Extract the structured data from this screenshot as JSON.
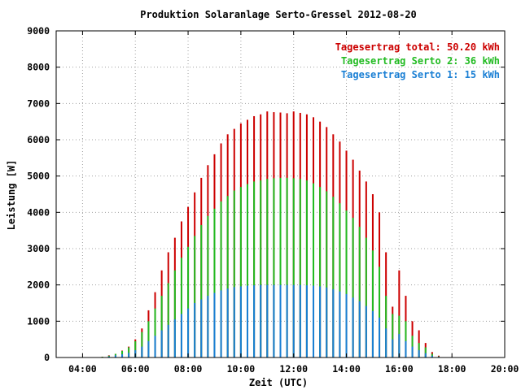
{
  "chart_data": {
    "type": "bar",
    "title": "Produktion Solaranlage Serto-Gressel 2012-08-20",
    "xlabel": "Zeit (UTC)",
    "ylabel": "Leistung [W]",
    "x_unit": "hours",
    "xlim": [
      3.0,
      20.0
    ],
    "ylim": [
      0,
      9000
    ],
    "x_ticks": [
      {
        "value": 4,
        "label": "04:00"
      },
      {
        "value": 6,
        "label": "06:00"
      },
      {
        "value": 8,
        "label": "08:00"
      },
      {
        "value": 10,
        "label": "10:00"
      },
      {
        "value": 12,
        "label": "12:00"
      },
      {
        "value": 14,
        "label": "14:00"
      },
      {
        "value": 16,
        "label": "16:00"
      },
      {
        "value": 18,
        "label": "18:00"
      },
      {
        "value": 20,
        "label": "20:00"
      }
    ],
    "y_ticks": [
      {
        "value": 0,
        "label": "0"
      },
      {
        "value": 1000,
        "label": "1000"
      },
      {
        "value": 2000,
        "label": "2000"
      },
      {
        "value": 3000,
        "label": "3000"
      },
      {
        "value": 4000,
        "label": "4000"
      },
      {
        "value": 5000,
        "label": "5000"
      },
      {
        "value": 6000,
        "label": "6000"
      },
      {
        "value": 7000,
        "label": "7000"
      },
      {
        "value": 8000,
        "label": "8000"
      },
      {
        "value": 9000,
        "label": "9000"
      }
    ],
    "grid": true,
    "legend_position": "top-right",
    "legend": [
      {
        "text": "Tagesertrag total: 50.20 kWh",
        "color": "#cc0000"
      },
      {
        "text": "Tagesertrag Serto 2: 36 kWh",
        "color": "#22bb22"
      },
      {
        "text": "Tagesertrag Serto 1: 15 kWh",
        "color": "#1a7fd4"
      }
    ],
    "series": [
      {
        "color": "#cc0000",
        "points": [
          [
            4.75,
            20
          ],
          [
            5.0,
            60
          ],
          [
            5.25,
            100
          ],
          [
            5.5,
            190
          ],
          [
            5.75,
            300
          ],
          [
            6.0,
            500
          ],
          [
            6.25,
            800
          ],
          [
            6.5,
            1300
          ],
          [
            6.75,
            1800
          ],
          [
            7.0,
            2400
          ],
          [
            7.25,
            2900
          ],
          [
            7.5,
            3300
          ],
          [
            7.75,
            3750
          ],
          [
            8.0,
            4150
          ],
          [
            8.25,
            4550
          ],
          [
            8.5,
            4950
          ],
          [
            8.75,
            5300
          ],
          [
            9.0,
            5600
          ],
          [
            9.25,
            5900
          ],
          [
            9.5,
            6150
          ],
          [
            9.75,
            6300
          ],
          [
            10.0,
            6450
          ],
          [
            10.25,
            6550
          ],
          [
            10.5,
            6650
          ],
          [
            10.75,
            6700
          ],
          [
            11.0,
            6780
          ],
          [
            11.25,
            6760
          ],
          [
            11.5,
            6750
          ],
          [
            11.75,
            6730
          ],
          [
            12.0,
            6780
          ],
          [
            12.25,
            6740
          ],
          [
            12.5,
            6700
          ],
          [
            12.75,
            6620
          ],
          [
            13.0,
            6500
          ],
          [
            13.25,
            6350
          ],
          [
            13.5,
            6150
          ],
          [
            13.75,
            5950
          ],
          [
            14.0,
            5700
          ],
          [
            14.25,
            5450
          ],
          [
            14.5,
            5150
          ],
          [
            14.75,
            4850
          ],
          [
            15.0,
            4500
          ],
          [
            15.25,
            4000
          ],
          [
            15.5,
            2900
          ],
          [
            15.75,
            1400
          ],
          [
            16.0,
            2400
          ],
          [
            16.25,
            1700
          ],
          [
            16.5,
            1000
          ],
          [
            16.75,
            750
          ],
          [
            17.0,
            400
          ],
          [
            17.25,
            150
          ],
          [
            17.5,
            50
          ]
        ]
      },
      {
        "color": "#22bb22",
        "points": [
          [
            4.75,
            20
          ],
          [
            5.0,
            50
          ],
          [
            5.25,
            100
          ],
          [
            5.5,
            180
          ],
          [
            5.75,
            280
          ],
          [
            6.0,
            450
          ],
          [
            6.25,
            700
          ],
          [
            6.5,
            1000
          ],
          [
            6.75,
            1350
          ],
          [
            7.0,
            1700
          ],
          [
            7.25,
            2050
          ],
          [
            7.5,
            2400
          ],
          [
            7.75,
            2750
          ],
          [
            8.0,
            3050
          ],
          [
            8.25,
            3350
          ],
          [
            8.5,
            3650
          ],
          [
            8.75,
            3900
          ],
          [
            9.0,
            4100
          ],
          [
            9.25,
            4300
          ],
          [
            9.5,
            4450
          ],
          [
            9.75,
            4600
          ],
          [
            10.0,
            4700
          ],
          [
            10.25,
            4780
          ],
          [
            10.5,
            4850
          ],
          [
            10.75,
            4880
          ],
          [
            11.0,
            4920
          ],
          [
            11.25,
            4940
          ],
          [
            11.5,
            4950
          ],
          [
            11.75,
            4950
          ],
          [
            12.0,
            4940
          ],
          [
            12.25,
            4920
          ],
          [
            12.5,
            4880
          ],
          [
            12.75,
            4800
          ],
          [
            13.0,
            4700
          ],
          [
            13.25,
            4580
          ],
          [
            13.5,
            4430
          ],
          [
            13.75,
            4250
          ],
          [
            14.0,
            4050
          ],
          [
            14.25,
            3850
          ],
          [
            14.5,
            3600
          ],
          [
            14.75,
            3300
          ],
          [
            15.0,
            2950
          ],
          [
            15.25,
            2500
          ],
          [
            15.5,
            1700
          ],
          [
            15.75,
            1200
          ],
          [
            16.0,
            1150
          ],
          [
            16.25,
            1000
          ],
          [
            16.5,
            600
          ],
          [
            16.75,
            400
          ],
          [
            17.0,
            280
          ],
          [
            17.25,
            100
          ],
          [
            17.5,
            30
          ]
        ]
      },
      {
        "color": "#1a7fd4",
        "points": [
          [
            4.75,
            10
          ],
          [
            5.0,
            30
          ],
          [
            5.25,
            60
          ],
          [
            5.5,
            90
          ],
          [
            5.75,
            130
          ],
          [
            6.0,
            200
          ],
          [
            6.25,
            300
          ],
          [
            6.5,
            450
          ],
          [
            6.75,
            600
          ],
          [
            7.0,
            750
          ],
          [
            7.25,
            900
          ],
          [
            7.5,
            1050
          ],
          [
            7.75,
            1200
          ],
          [
            8.0,
            1350
          ],
          [
            8.25,
            1500
          ],
          [
            8.5,
            1600
          ],
          [
            8.75,
            1700
          ],
          [
            9.0,
            1780
          ],
          [
            9.25,
            1850
          ],
          [
            9.5,
            1900
          ],
          [
            9.75,
            1940
          ],
          [
            10.0,
            1960
          ],
          [
            10.25,
            1980
          ],
          [
            10.5,
            1990
          ],
          [
            10.75,
            2000
          ],
          [
            11.0,
            2000
          ],
          [
            11.25,
            2000
          ],
          [
            11.5,
            2000
          ],
          [
            11.75,
            2000
          ],
          [
            12.0,
            2000
          ],
          [
            12.25,
            2000
          ],
          [
            12.5,
            1990
          ],
          [
            12.75,
            1980
          ],
          [
            13.0,
            1960
          ],
          [
            13.25,
            1930
          ],
          [
            13.5,
            1880
          ],
          [
            13.75,
            1820
          ],
          [
            14.0,
            1750
          ],
          [
            14.25,
            1650
          ],
          [
            14.5,
            1550
          ],
          [
            14.75,
            1420
          ],
          [
            15.0,
            1280
          ],
          [
            15.25,
            1100
          ],
          [
            15.5,
            800
          ],
          [
            15.75,
            500
          ],
          [
            16.0,
            650
          ],
          [
            16.25,
            450
          ],
          [
            16.5,
            300
          ],
          [
            16.75,
            200
          ],
          [
            17.0,
            120
          ],
          [
            17.25,
            50
          ],
          [
            17.5,
            20
          ]
        ]
      }
    ]
  }
}
